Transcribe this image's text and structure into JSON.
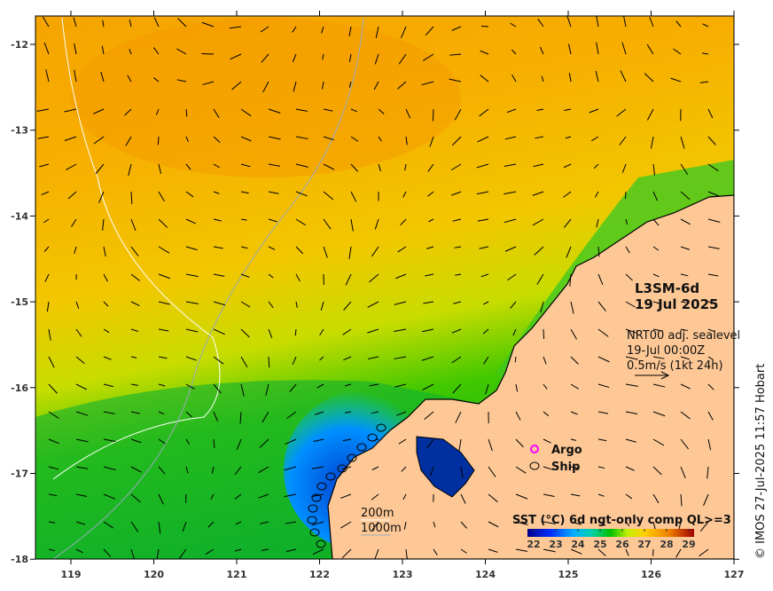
{
  "product": {
    "title": "L3SM-6d",
    "date": "19 Jul 2025"
  },
  "currents": {
    "source": "NRT00 adj. sealevel",
    "time": "19-Jul 00:00Z",
    "scale": "0.5m/s (1kt 24h)"
  },
  "legend": {
    "argo": "Argo",
    "ship": "Ship",
    "argo_color": "#ff00ff"
  },
  "bathymetry": {
    "contour1": "200m",
    "contour2": "1000m"
  },
  "colorbar": {
    "title": "SST (°C) 6d ngt-only comp QL>=3",
    "ticks": [
      "22",
      "23",
      "24",
      "25",
      "26",
      "27",
      "28",
      "29"
    ],
    "range": [
      22,
      29.5
    ]
  },
  "axes": {
    "lon_ticks": [
      "119",
      "120",
      "121",
      "122",
      "123",
      "124",
      "125",
      "126",
      "127"
    ],
    "lat_ticks": [
      "-12",
      "-13",
      "-14",
      "-15",
      "-16",
      "-17",
      "-18"
    ]
  },
  "copyright": "© IMOS 27-Jul-2025 11:57 Hobart",
  "colors": {
    "land": "#fdc896",
    "warm": "#f5a300",
    "mid": "#f0c800",
    "cool": "#20c800",
    "cold": "#0050e0"
  }
}
